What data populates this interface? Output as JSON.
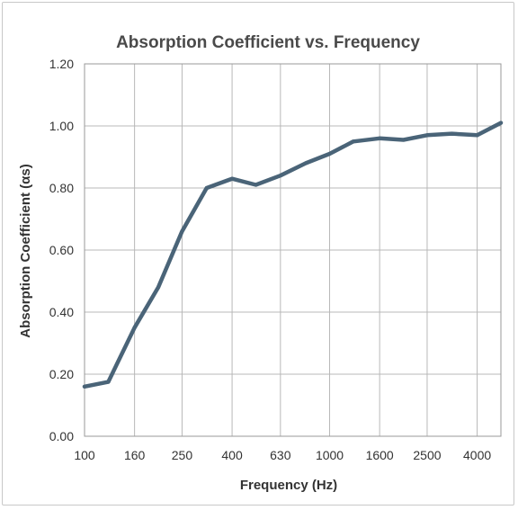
{
  "chart_data": {
    "type": "line",
    "title": "Absorption Coefficient vs. Frequency",
    "xlabel": "Frequency (Hz)",
    "ylabel": "Absorption Coefficient (αs)",
    "ylim": [
      0,
      1.2
    ],
    "yticks": [
      "0.00",
      "0.20",
      "0.40",
      "0.60",
      "0.80",
      "1.00",
      "1.20"
    ],
    "x_scale": "log (third-octave bands)",
    "x_tick_labels": [
      "100",
      "160",
      "250",
      "400",
      "630",
      "1000",
      "1600",
      "2500",
      "4000"
    ],
    "grid": true,
    "legend": "none",
    "line_color": "#4a6478",
    "series": [
      {
        "x": [
          100,
          125,
          160,
          200,
          250,
          315,
          400,
          500,
          630,
          800,
          1000,
          1250,
          1600,
          2000,
          2500,
          3150,
          4000,
          5000
        ],
        "values": [
          0.16,
          0.175,
          0.35,
          0.48,
          0.66,
          0.8,
          0.83,
          0.81,
          0.84,
          0.88,
          0.91,
          0.95,
          0.96,
          0.955,
          0.97,
          0.975,
          0.97,
          1.01
        ]
      }
    ]
  }
}
